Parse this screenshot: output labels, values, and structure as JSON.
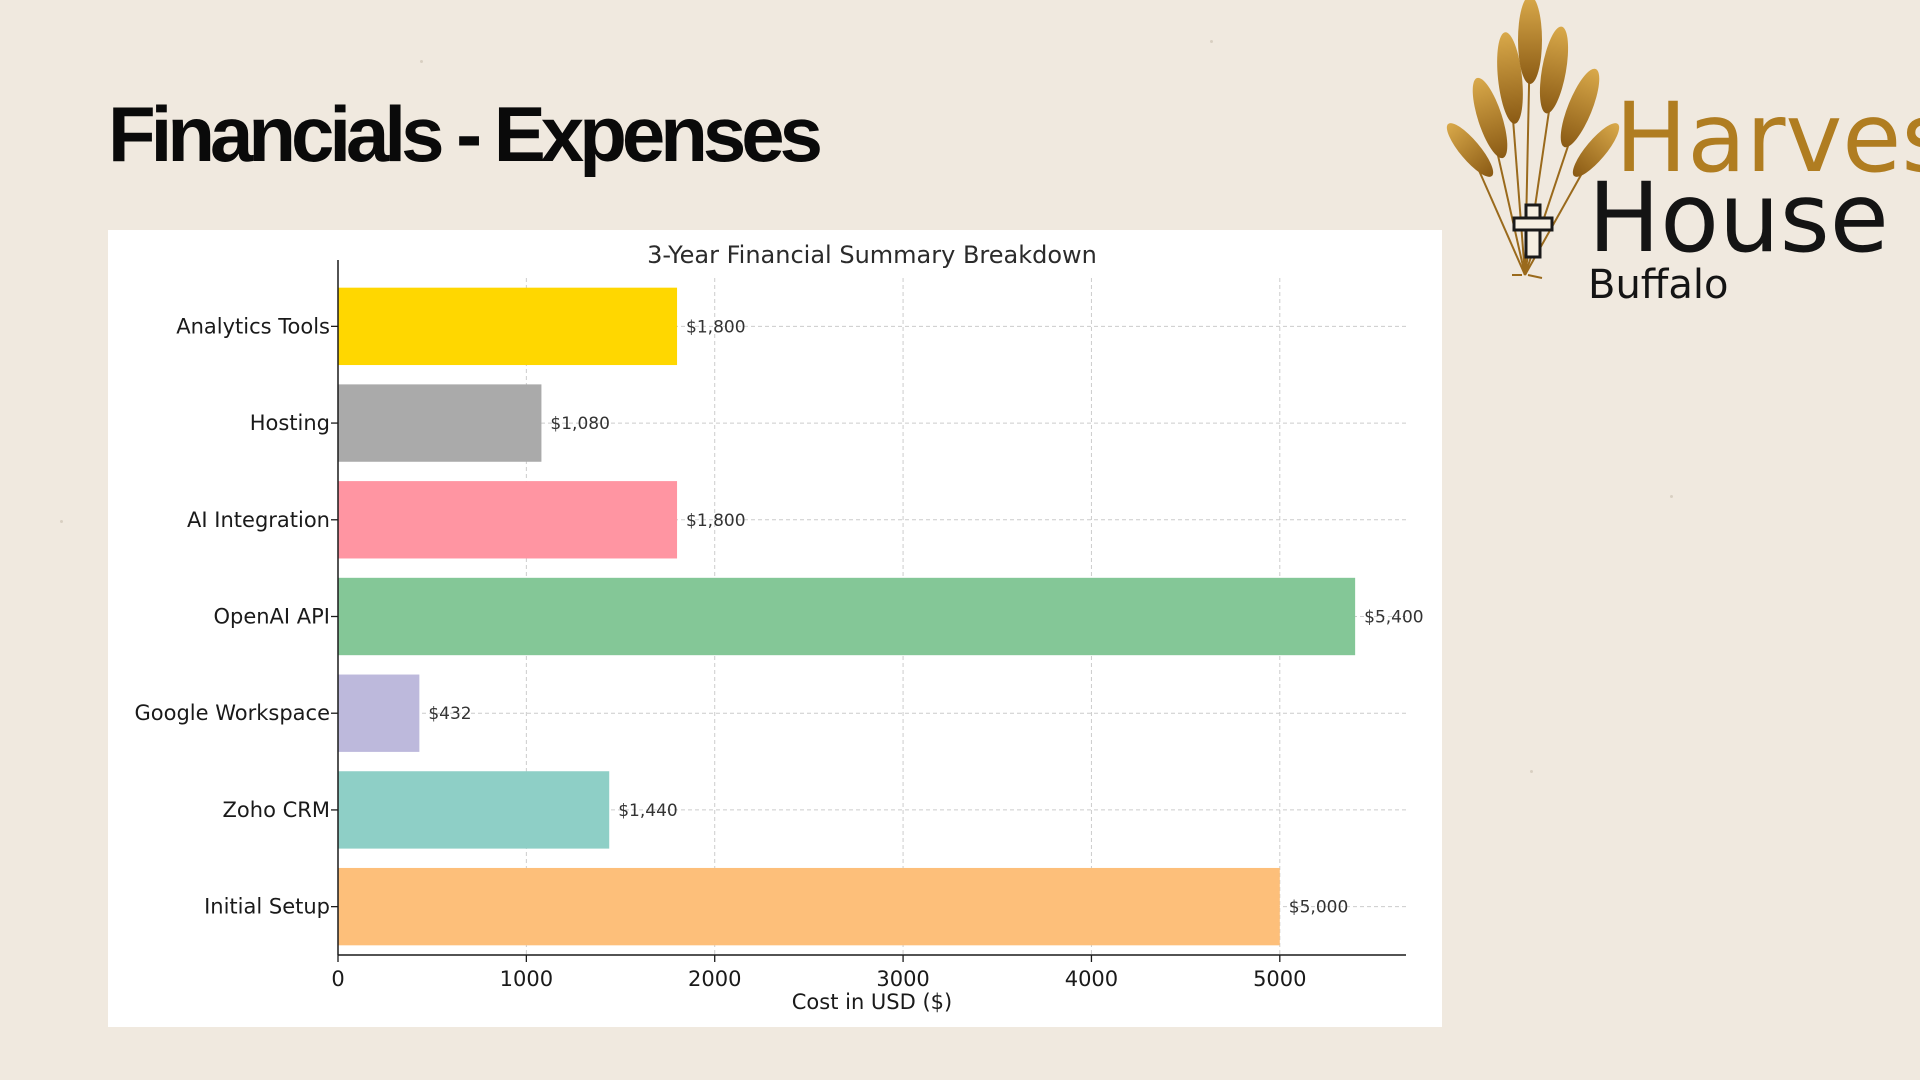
{
  "slide": {
    "title": "Financials - Expenses"
  },
  "brand": {
    "line1": "Harvest",
    "line2": "House",
    "line3": "Buffalo"
  },
  "chart_data": {
    "type": "bar",
    "orientation": "horizontal",
    "title": "3-Year Financial Summary Breakdown",
    "xlabel": "Cost in USD ($)",
    "ylabel": "",
    "categories": [
      "Initial Setup",
      "Zoho CRM",
      "Google Workspace",
      "OpenAI API",
      "AI Integration",
      "Hosting",
      "Analytics Tools"
    ],
    "values": [
      5000,
      1440,
      432,
      5400,
      1800,
      1080,
      1800
    ],
    "value_labels": [
      "$5,000",
      "$1,440",
      "$432",
      "$5,400",
      "$1,800",
      "$1,080",
      "$1,800"
    ],
    "colors": [
      "#fdbf7a",
      "#8ecfc6",
      "#bdb9dc",
      "#84c797",
      "#ff95a2",
      "#aaaaaa",
      "#ffd700"
    ],
    "xticks": [
      0,
      1000,
      2000,
      3000,
      4000,
      5000
    ],
    "xlim": [
      0,
      5670
    ],
    "grid": true,
    "legend": "none"
  }
}
